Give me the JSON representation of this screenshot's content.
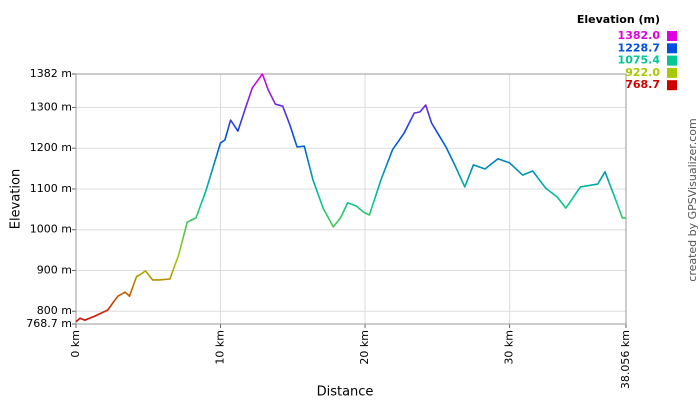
{
  "chart_data": {
    "type": "line",
    "x_label": "Distance",
    "y_label": "Elevation",
    "credit": "created by GPSVisualizer.com",
    "legend": {
      "title": "Elevation (m)",
      "items": [
        {
          "value": 1382.0,
          "label": "1382.0",
          "color": "#e000e0"
        },
        {
          "value": 1228.7,
          "label": "1228.7",
          "color": "#0050e0"
        },
        {
          "value": 1075.4,
          "label": "1075.4",
          "color": "#00c890"
        },
        {
          "value": 922.0,
          "label": "922.0",
          "color": "#a8c800"
        },
        {
          "value": 768.7,
          "label": "768.7",
          "color": "#d00000"
        }
      ]
    },
    "x": [
      0,
      0.28,
      0.6,
      1.3,
      2.2,
      2.6,
      2.9,
      3.4,
      3.7,
      3.9,
      4.2,
      4.4,
      4.8,
      5.3,
      5.8,
      6.5,
      7.1,
      7.7,
      8.3,
      9.0,
      10.0,
      10.3,
      10.7,
      11.2,
      11.8,
      12.2,
      12.9,
      13.3,
      13.8,
      14.3,
      14.8,
      15.3,
      15.8,
      16.4,
      17.1,
      17.8,
      18.3,
      18.8,
      19.4,
      19.9,
      20.3,
      21.1,
      21.9,
      22.7,
      23.4,
      23.8,
      24.2,
      24.6,
      25.6,
      26.2,
      26.9,
      27.5,
      28.3,
      29.2,
      30.0,
      30.9,
      31.6,
      32.5,
      33.3,
      33.9,
      34.9,
      36.1,
      36.6,
      37.4,
      37.8,
      38.056
    ],
    "series": [
      {
        "name": "Elevation",
        "values": [
          774,
          783,
          778,
          788,
          803,
          823,
          837,
          847,
          837,
          857,
          886,
          889,
          899,
          877,
          877,
          879,
          938,
          1019,
          1029,
          1097,
          1213,
          1220,
          1269,
          1242,
          1306,
          1348,
          1382,
          1343,
          1308,
          1303,
          1257,
          1203,
          1205,
          1122,
          1053,
          1007,
          1029,
          1066,
          1058,
          1043,
          1036,
          1122,
          1196,
          1237,
          1286,
          1289,
          1306,
          1262,
          1203,
          1159,
          1105,
          1159,
          1149,
          1174,
          1164,
          1134,
          1144,
          1102,
          1080,
          1053,
          1105,
          1112,
          1142,
          1068,
          1029,
          1029
        ]
      }
    ],
    "xlim": [
      0,
      38.056
    ],
    "ylim": [
      768.7,
      1382
    ],
    "xticks": [
      {
        "value": 0,
        "label": "0 km"
      },
      {
        "value": 10,
        "label": "10 km"
      },
      {
        "value": 20,
        "label": "20 km"
      },
      {
        "value": 30,
        "label": "30 km"
      },
      {
        "value": 38.056,
        "label": "38.056 km"
      }
    ],
    "yticks": [
      {
        "value": 768.7,
        "label": "768.7 m"
      },
      {
        "value": 800,
        "label": "800 m"
      },
      {
        "value": 900,
        "label": "900 m"
      },
      {
        "value": 1000,
        "label": "1000 m"
      },
      {
        "value": 1100,
        "label": "1100 m"
      },
      {
        "value": 1200,
        "label": "1200 m"
      },
      {
        "value": 1300,
        "label": "1300 m"
      },
      {
        "value": 1382,
        "label": "1382 m"
      }
    ],
    "grid": true
  }
}
